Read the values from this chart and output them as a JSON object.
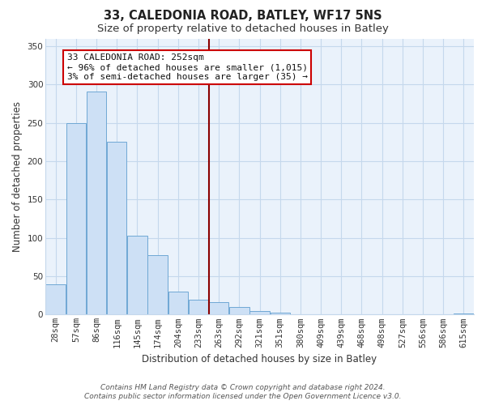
{
  "title": "33, CALEDONIA ROAD, BATLEY, WF17 5NS",
  "subtitle": "Size of property relative to detached houses in Batley",
  "xlabel": "Distribution of detached houses by size in Batley",
  "ylabel": "Number of detached properties",
  "bar_labels": [
    "28sqm",
    "57sqm",
    "86sqm",
    "116sqm",
    "145sqm",
    "174sqm",
    "204sqm",
    "233sqm",
    "263sqm",
    "292sqm",
    "321sqm",
    "351sqm",
    "380sqm",
    "409sqm",
    "439sqm",
    "468sqm",
    "498sqm",
    "527sqm",
    "556sqm",
    "586sqm",
    "615sqm"
  ],
  "bar_values": [
    39,
    250,
    291,
    225,
    103,
    78,
    30,
    19,
    16,
    10,
    5,
    3,
    0,
    0,
    0,
    0,
    0,
    0,
    0,
    0,
    1
  ],
  "bar_color": "#cde0f5",
  "bar_edge_color": "#6fa8d4",
  "ylim": [
    0,
    360
  ],
  "yticks": [
    0,
    50,
    100,
    150,
    200,
    250,
    300,
    350
  ],
  "property_line_color": "#8b0000",
  "annotation_text_line1": "33 CALEDONIA ROAD: 252sqm",
  "annotation_text_line2": "← 96% of detached houses are smaller (1,015)",
  "annotation_text_line3": "3% of semi-detached houses are larger (35) →",
  "footer_line1": "Contains HM Land Registry data © Crown copyright and database right 2024.",
  "footer_line2": "Contains public sector information licensed under the Open Government Licence v3.0.",
  "bg_color": "#ffffff",
  "plot_bg_color": "#eaf2fb",
  "grid_color": "#c5d8ec",
  "title_fontsize": 10.5,
  "subtitle_fontsize": 9.5,
  "axis_label_fontsize": 8.5,
  "tick_fontsize": 7.5,
  "annotation_fontsize": 8.0,
  "footer_fontsize": 6.5
}
